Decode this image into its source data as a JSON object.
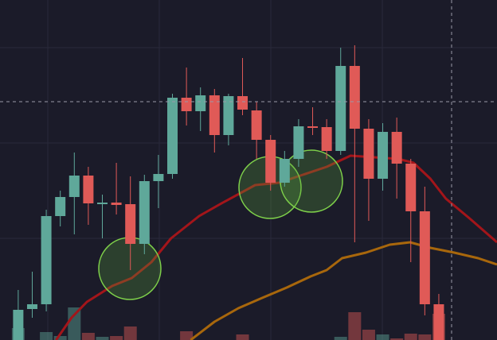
{
  "chart_data": {
    "type": "candlestick",
    "categories": [
      null,
      null,
      null,
      null,
      null,
      null,
      null,
      null,
      null,
      null,
      null,
      null,
      null,
      null,
      null,
      null,
      null,
      null,
      null,
      null,
      null,
      null,
      null,
      null,
      null,
      null,
      null,
      null,
      null,
      null,
      null
    ],
    "open": [
      0,
      39,
      45,
      156,
      180,
      207,
      171,
      173,
      171,
      121,
      200,
      209,
      305,
      288,
      308,
      258,
      307,
      289,
      252,
      198,
      228,
      269,
      268,
      238,
      345,
      266,
      203,
      262,
      222,
      162,
      45
    ],
    "high": [
      63,
      86,
      164,
      188,
      236,
      218,
      183,
      223,
      206,
      208,
      233,
      310,
      343,
      318,
      316,
      310,
      355,
      300,
      258,
      238,
      278,
      293,
      278,
      368,
      371,
      278,
      273,
      280,
      228,
      193,
      58
    ],
    "low": [
      0,
      28,
      36,
      143,
      133,
      145,
      128,
      158,
      88,
      108,
      166,
      203,
      270,
      263,
      236,
      245,
      283,
      228,
      188,
      193,
      218,
      258,
      228,
      233,
      123,
      150,
      188,
      178,
      98,
      31,
      0
    ],
    "close": [
      38,
      45,
      156,
      180,
      207,
      172,
      173,
      170,
      121,
      200,
      209,
      305,
      288,
      308,
      258,
      307,
      290,
      252,
      198,
      228,
      269,
      267,
      238,
      345,
      266,
      203,
      262,
      222,
      162,
      45,
      0
    ],
    "volume": [
      15,
      0,
      10,
      5,
      41,
      9,
      4,
      5,
      17,
      0,
      0,
      0,
      11,
      0,
      0,
      0,
      7,
      0,
      0,
      0,
      0,
      0,
      0,
      4,
      35,
      13,
      7,
      2,
      8,
      7,
      33
    ],
    "up_color": "#5fa89a",
    "down_color": "#e05a57",
    "ylim": [
      0,
      428
    ],
    "xlim": [
      -1.3,
      34.15
    ],
    "volume_lim": [
      0,
      100
    ],
    "lines": [
      {
        "color": "#a3151a",
        "x": [
          2.7,
          3.8,
          4.9,
          6.7,
          8.1,
          9.5,
          10.9,
          12.9,
          14.6,
          16.9,
          18.6,
          20.3,
          22.0,
          23.7,
          25.4,
          27.1,
          28.2,
          29.4,
          30.5,
          32.2,
          34.15
        ],
        "values": [
          0,
          28,
          48,
          68,
          78,
          98,
          128,
          156,
          173,
          195,
          198,
          208,
          218,
          232,
          230,
          228,
          223,
          203,
          178,
          153,
          123
        ]
      },
      {
        "color": "#a8670c",
        "x": [
          12.3,
          14.0,
          15.7,
          17.4,
          19.15,
          20.85,
          22.0,
          23.1,
          24.8,
          26.5,
          27.95,
          29.4,
          31.1,
          32.8,
          34.15
        ],
        "values": [
          0,
          23,
          40,
          53,
          66,
          80,
          88,
          103,
          110,
          120,
          123,
          116,
          110,
          103,
          95
        ]
      }
    ]
  }
}
